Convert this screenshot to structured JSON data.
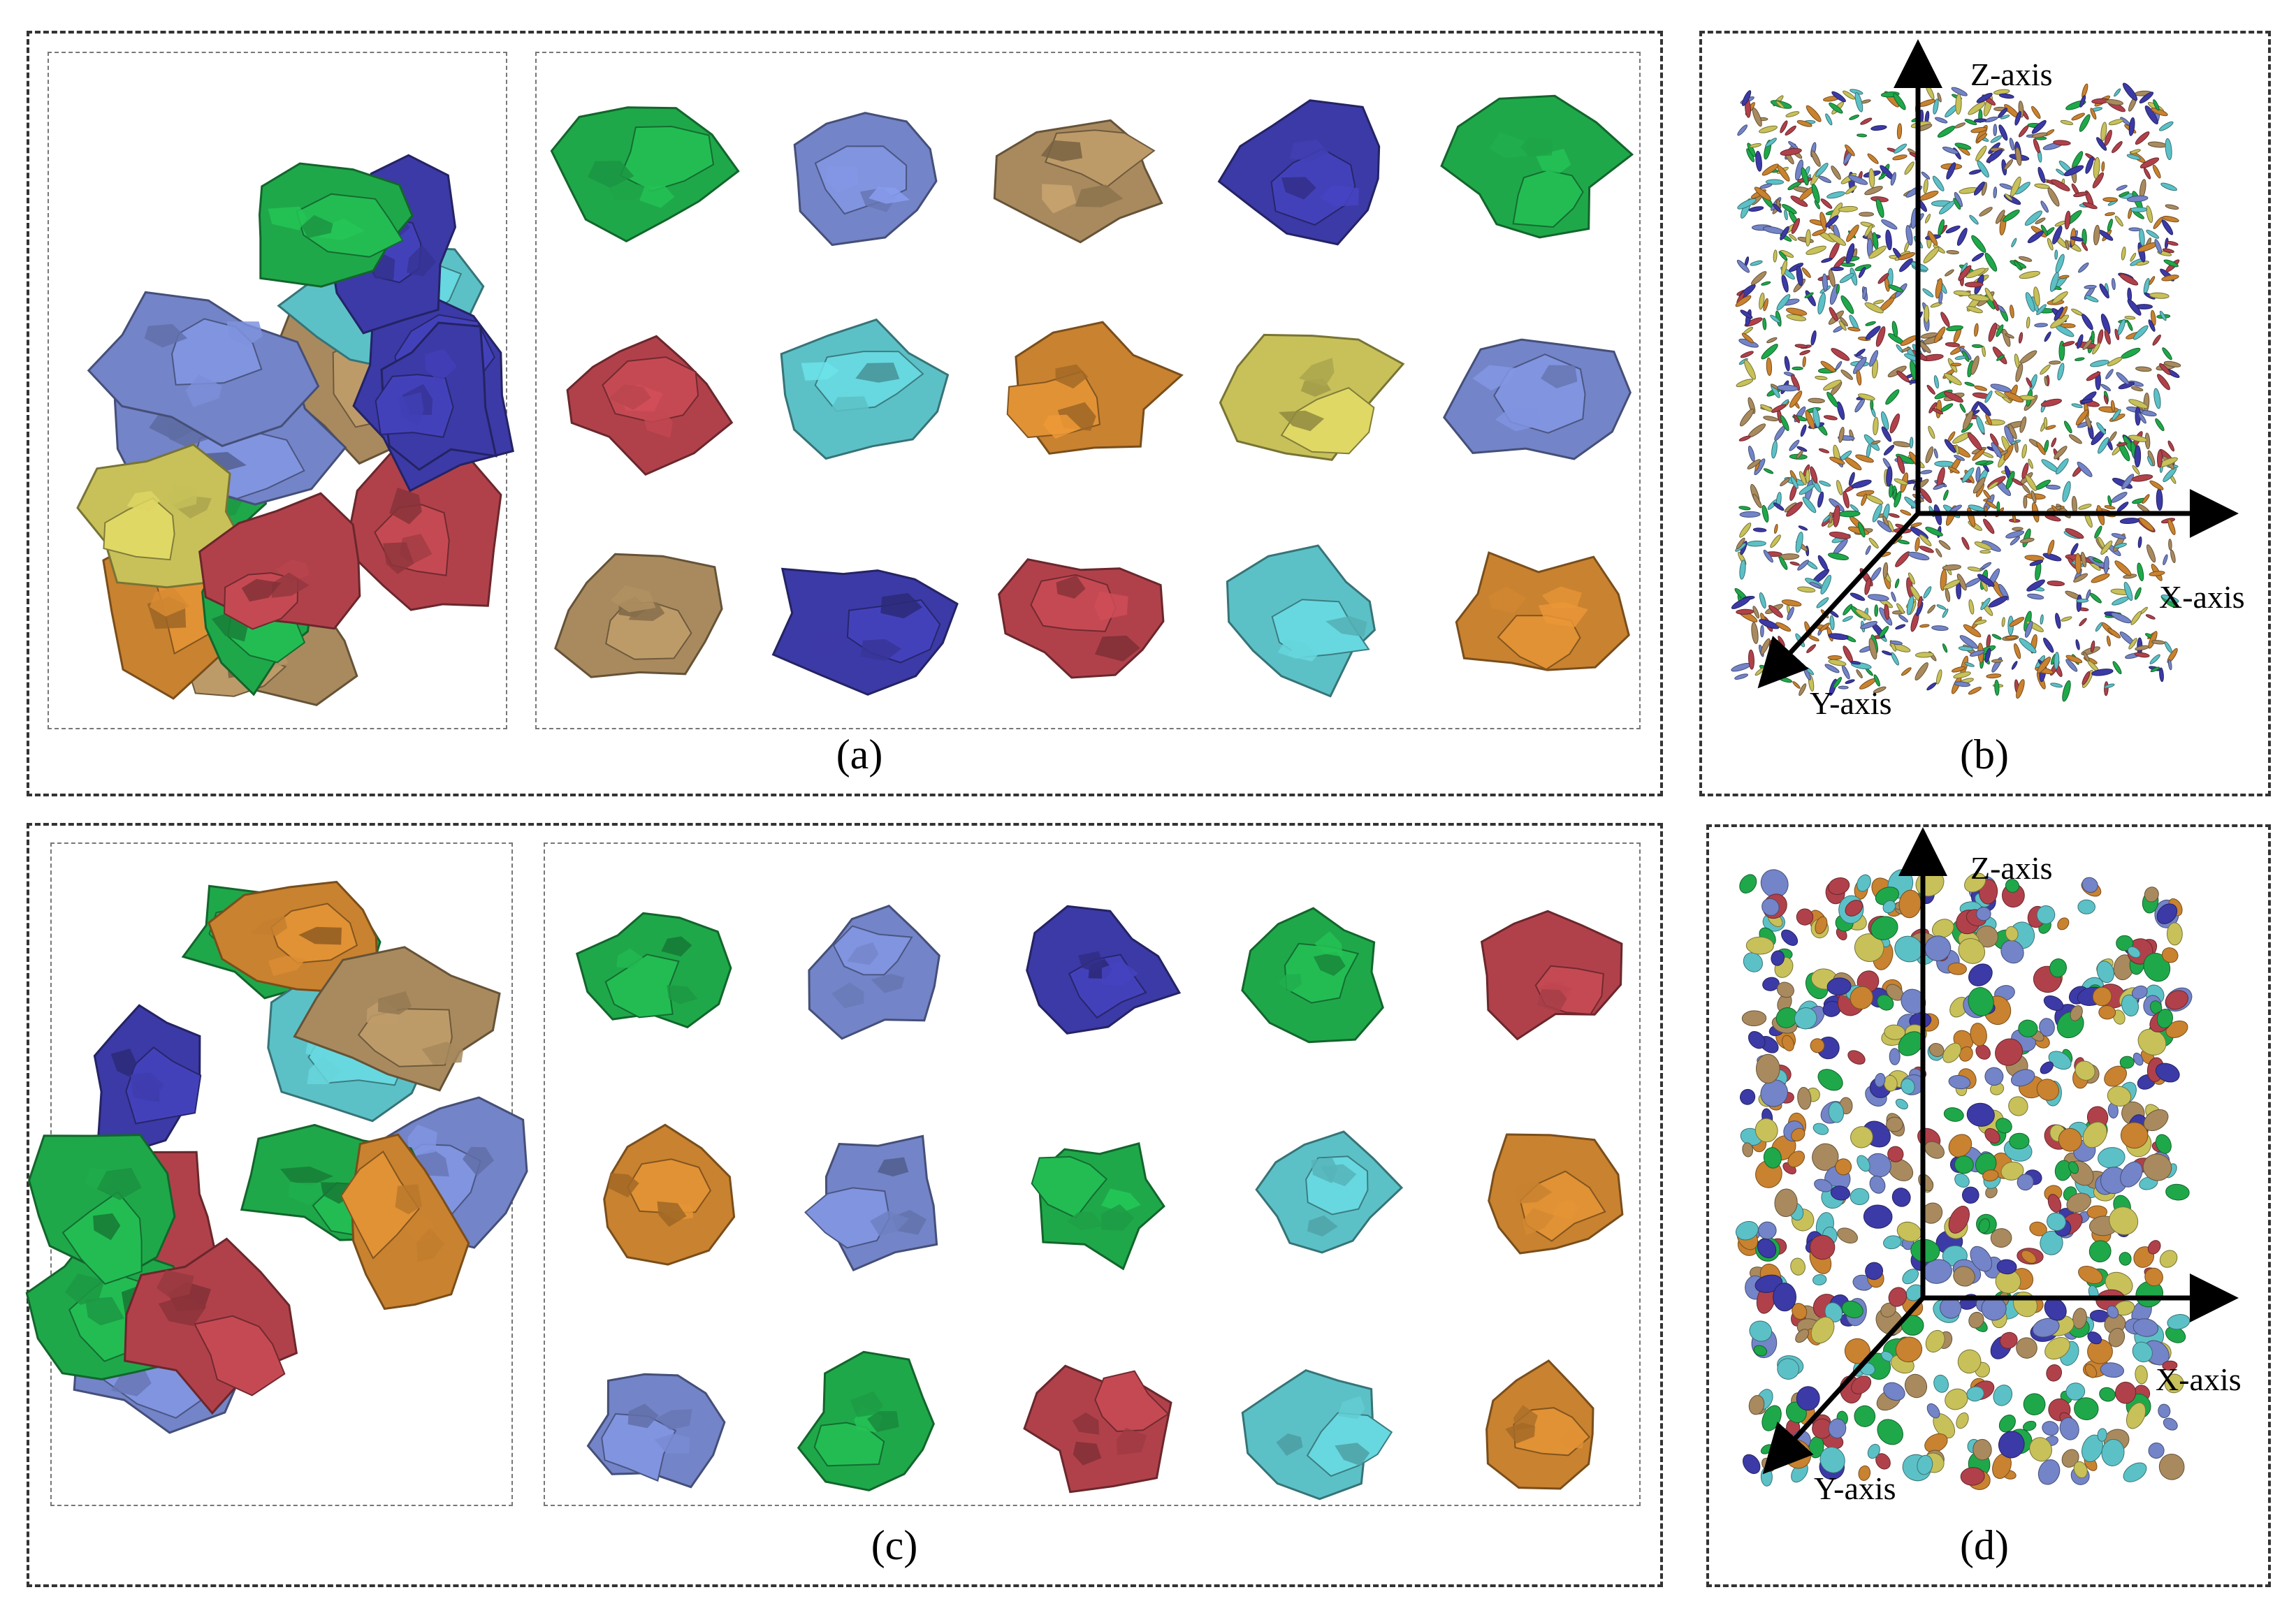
{
  "figure": {
    "panels": [
      {
        "id": "a",
        "caption": "(a)"
      },
      {
        "id": "b",
        "caption": "(b)"
      },
      {
        "id": "c",
        "caption": "(c)"
      },
      {
        "id": "d",
        "caption": "(d)"
      }
    ],
    "axes": {
      "x": "X-axis",
      "y": "Y-axis",
      "z": "Z-axis"
    }
  },
  "palette": {
    "red": "#b0414a",
    "blue": "#3c3aa6",
    "slate": "#7384c8",
    "cyan": "#5cc1c7",
    "green": "#1fa84a",
    "tan": "#a98a5e",
    "orange": "#c9822f",
    "olive": "#c8c15a"
  },
  "particle_grids": {
    "a": [
      "green",
      "slate",
      "tan",
      "blue",
      "green",
      "red",
      "cyan",
      "orange",
      "olive",
      "slate",
      "tan",
      "blue",
      "red",
      "cyan",
      "orange"
    ],
    "c": [
      "green",
      "slate",
      "blue",
      "green",
      "red",
      "orange",
      "slate",
      "green",
      "cyan",
      "orange",
      "slate",
      "green",
      "red",
      "cyan",
      "orange"
    ]
  },
  "clusters": {
    "a": [
      "red",
      "tan",
      "cyan",
      "blue",
      "blue",
      "tan",
      "blue",
      "orange",
      "green",
      "slate",
      "slate",
      "green",
      "olive",
      "green",
      "red"
    ],
    "c": [
      "green",
      "slate",
      "cyan",
      "red",
      "slate",
      "blue",
      "green",
      "green",
      "red",
      "orange",
      "orange",
      "green",
      "tan"
    ]
  }
}
